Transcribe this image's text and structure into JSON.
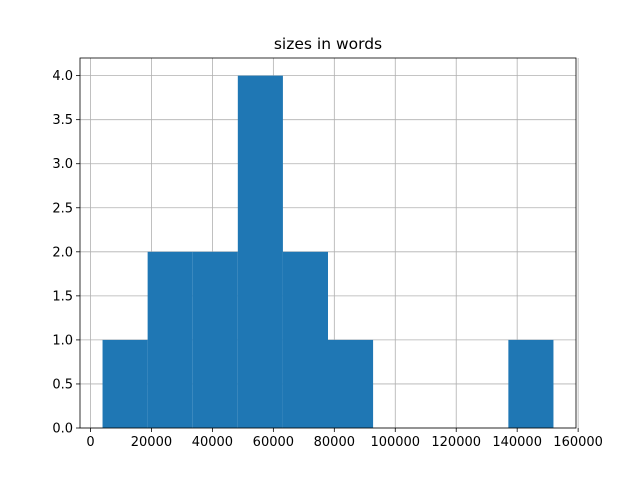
{
  "chart_data": {
    "type": "histogram",
    "title": "sizes in words",
    "bins": [
      3954,
      18749,
      33544,
      48339,
      63134,
      77929,
      92724,
      107519,
      122314,
      137109,
      151904
    ],
    "values": [
      1,
      2,
      2,
      4,
      2,
      1,
      0,
      0,
      0,
      1
    ],
    "color": "#1f77b4",
    "xlim": [
      -3443,
      159301
    ],
    "xticks": [
      0,
      20000,
      40000,
      60000,
      80000,
      100000,
      120000,
      140000,
      160000
    ],
    "ylim": [
      0,
      4.2
    ],
    "yticks": [
      {
        "value": 0,
        "label": "0.0"
      },
      0.5,
      {
        "value": 1,
        "label": "1.0"
      },
      1.5,
      {
        "value": 2,
        "label": "2.0"
      },
      2.5,
      {
        "value": 3,
        "label": "3.0"
      },
      3.5,
      {
        "value": 4,
        "label": "4.0"
      }
    ],
    "grid": true
  }
}
